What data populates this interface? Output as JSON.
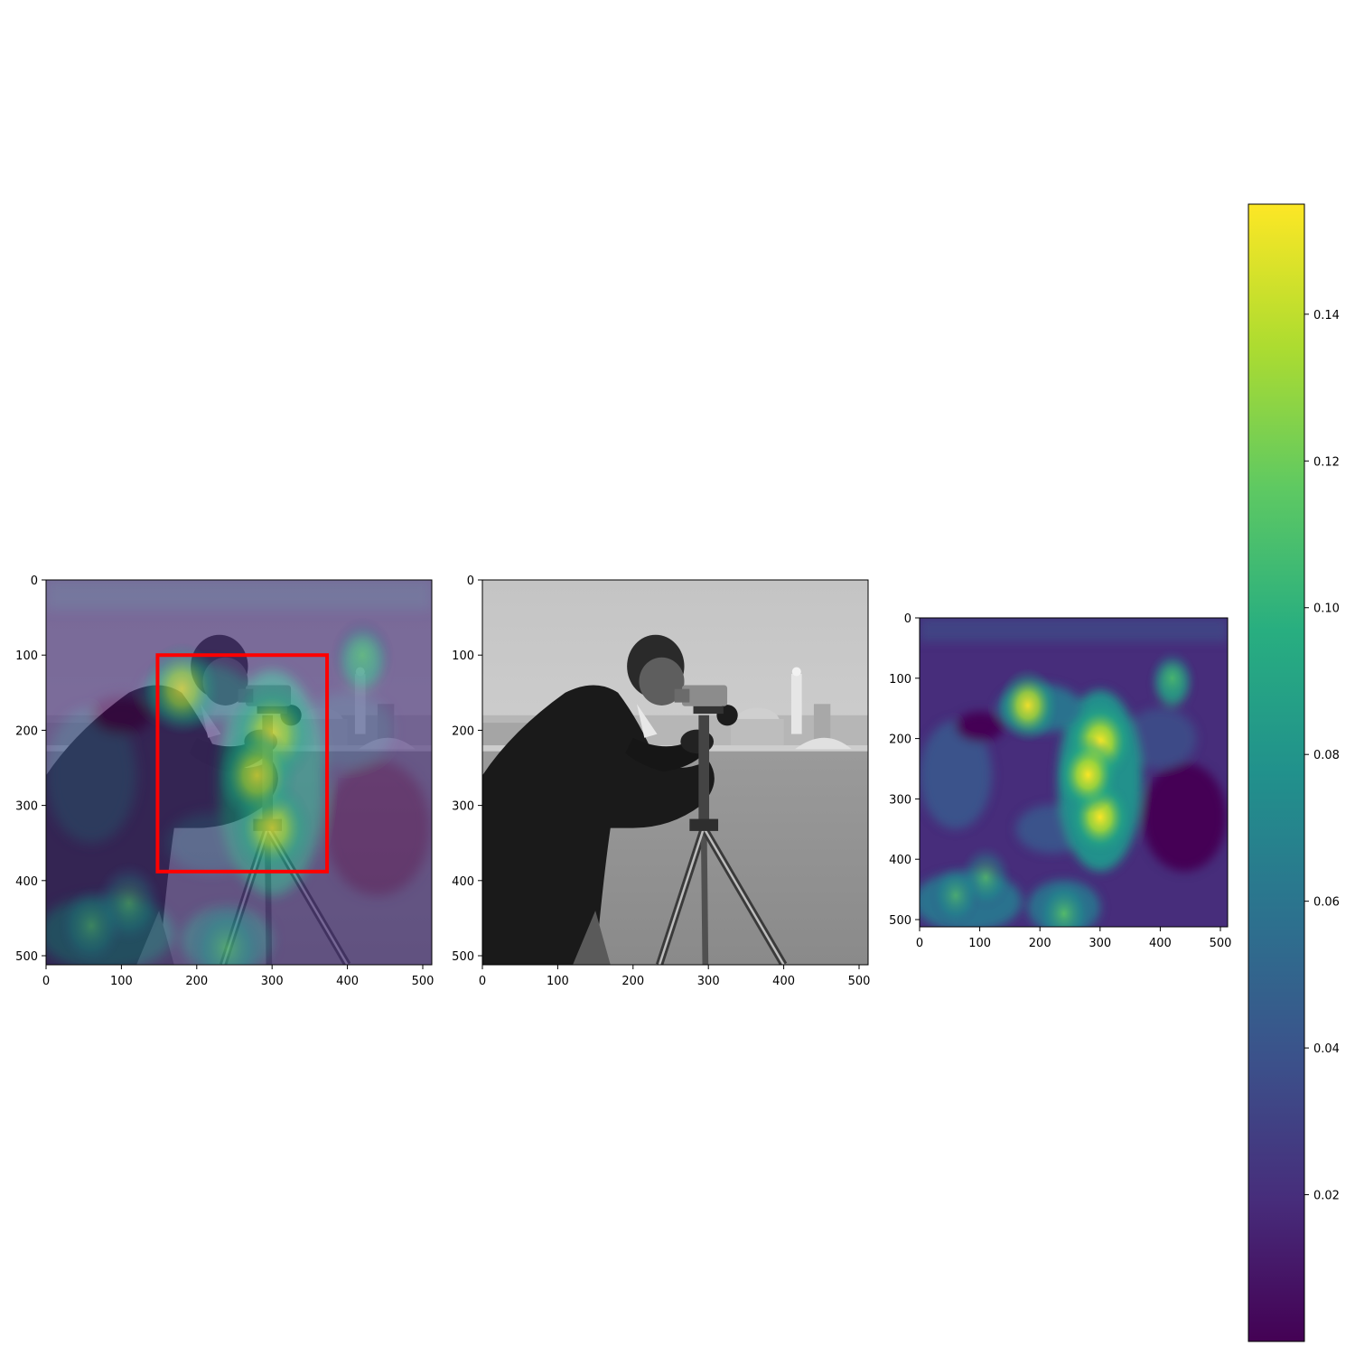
{
  "chart_data": [
    {
      "type": "heatmap",
      "panel": "overlay",
      "image": "cameraman",
      "overlay": "saliency-heatmap",
      "x_ticks": [
        "0",
        "100",
        "200",
        "300",
        "400",
        "500"
      ],
      "y_ticks": [
        "0",
        "100",
        "200",
        "300",
        "400",
        "500"
      ],
      "xlim": [
        0,
        512
      ],
      "ylim": [
        512,
        0
      ],
      "annotation_box": {
        "x0": 148,
        "y0": 100,
        "x1": 373,
        "y1": 388,
        "color": "#ff0000"
      }
    },
    {
      "type": "heatmap",
      "panel": "original",
      "image": "cameraman",
      "x_ticks": [
        "0",
        "100",
        "200",
        "300",
        "400",
        "500"
      ],
      "y_ticks": [
        "0",
        "100",
        "200",
        "300",
        "400",
        "500"
      ],
      "xlim": [
        0,
        512
      ],
      "ylim": [
        512,
        0
      ]
    },
    {
      "type": "heatmap",
      "panel": "saliency",
      "colormap": "viridis",
      "x_ticks": [
        "0",
        "100",
        "200",
        "300",
        "400",
        "500"
      ],
      "y_ticks": [
        "0",
        "100",
        "200",
        "300",
        "400",
        "500"
      ],
      "xlim": [
        0,
        512
      ],
      "ylim": [
        512,
        0
      ],
      "hotspots": [
        {
          "x": 300,
          "y": 205,
          "value": 0.15
        },
        {
          "x": 300,
          "y": 330,
          "value": 0.13
        },
        {
          "x": 280,
          "y": 260,
          "value": 0.13
        },
        {
          "x": 180,
          "y": 145,
          "value": 0.12
        },
        {
          "x": 110,
          "y": 430,
          "value": 0.09
        },
        {
          "x": 240,
          "y": 490,
          "value": 0.11
        },
        {
          "x": 420,
          "y": 100,
          "value": 0.07
        },
        {
          "x": 60,
          "y": 460,
          "value": 0.08
        }
      ]
    }
  ],
  "colorbar": {
    "colormap": "viridis",
    "min": 0.0,
    "max": 0.155,
    "ticks": [
      "0.02",
      "0.04",
      "0.06",
      "0.08",
      "0.10",
      "0.12",
      "0.14"
    ],
    "tick_values": [
      0.02,
      0.04,
      0.06,
      0.08,
      0.1,
      0.12,
      0.14
    ]
  }
}
